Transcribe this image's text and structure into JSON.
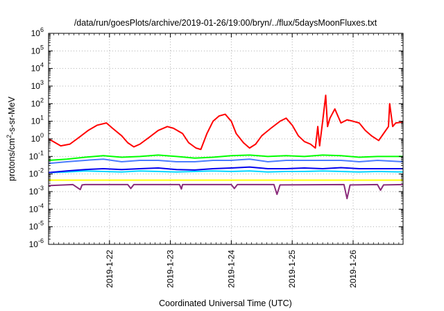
{
  "chart_data": {
    "type": "line",
    "title": "/data/run/goesPlots/archive/2019-01-26/19:00/bryn/../flux/5daysMoonFluxes.txt",
    "xlabel": "Coordinated Universal Time (UTC)",
    "ylabel_parts": {
      "pre": "protons/cm",
      "sup": "2",
      "post": "-s-sr-MeV"
    },
    "yscale": "log",
    "ylim": [
      1e-06,
      1000000.0
    ],
    "xlim": [
      21.0,
      26.82
    ],
    "grid": true,
    "yticks": [
      {
        "value": -6,
        "base": "10",
        "exp": "-6"
      },
      {
        "value": -5,
        "base": "10",
        "exp": "-5"
      },
      {
        "value": -4,
        "base": "10",
        "exp": "-4"
      },
      {
        "value": -3,
        "base": "10",
        "exp": "-3"
      },
      {
        "value": -2,
        "base": "10",
        "exp": "-2"
      },
      {
        "value": -1,
        "base": "10",
        "exp": "-1"
      },
      {
        "value": 0,
        "base": "10",
        "exp": "0"
      },
      {
        "value": 1,
        "base": "10",
        "exp": "1"
      },
      {
        "value": 2,
        "base": "10",
        "exp": "2"
      },
      {
        "value": 3,
        "base": "10",
        "exp": "3"
      },
      {
        "value": 4,
        "base": "10",
        "exp": "4"
      },
      {
        "value": 5,
        "base": "10",
        "exp": "5"
      },
      {
        "value": 6,
        "base": "10",
        "exp": "6"
      }
    ],
    "xticks": [
      {
        "value": 22,
        "label": "2019-1-22"
      },
      {
        "value": 23,
        "label": "2019-1-23"
      },
      {
        "value": 24,
        "label": "2019-1-24"
      },
      {
        "value": 25,
        "label": "2019-1-25"
      },
      {
        "value": 26,
        "label": "2019-1-26"
      }
    ],
    "series": [
      {
        "color": "#ff0000",
        "x": [
          21.0,
          21.2,
          21.35,
          21.5,
          21.65,
          21.8,
          21.95,
          22.05,
          22.2,
          22.3,
          22.4,
          22.5,
          22.65,
          22.8,
          22.95,
          23.05,
          23.2,
          23.3,
          23.42,
          23.5,
          23.6,
          23.7,
          23.8,
          23.9,
          24.0,
          24.08,
          24.2,
          24.3,
          24.4,
          24.5,
          24.65,
          24.8,
          24.9,
          25.0,
          25.1,
          25.2,
          25.3,
          25.38,
          25.42,
          25.45,
          25.5,
          25.55,
          25.58,
          25.62,
          25.7,
          25.8,
          25.9,
          26.0,
          26.1,
          26.2,
          26.3,
          26.42,
          26.5,
          26.58,
          26.6,
          26.65,
          26.7,
          26.82
        ],
        "values": [
          1.0,
          0.4,
          0.5,
          1.2,
          3.0,
          6.0,
          8.0,
          4.0,
          1.5,
          0.6,
          0.35,
          0.5,
          1.2,
          3.0,
          5.0,
          4.0,
          2.0,
          0.6,
          0.3,
          0.25,
          2.0,
          10.0,
          20.0,
          25.0,
          10.0,
          2.0,
          0.6,
          0.3,
          0.5,
          1.5,
          4.0,
          10.0,
          15.0,
          6.0,
          1.5,
          0.7,
          0.5,
          0.3,
          5.0,
          0.4,
          10.0,
          300.0,
          5.0,
          15.0,
          50.0,
          8.0,
          12.0,
          10.0,
          8.0,
          3.0,
          1.5,
          0.8,
          2.0,
          5.0,
          100.0,
          5.0,
          8.0,
          9.0
        ]
      },
      {
        "color": "#00ff00",
        "x": [
          21.0,
          21.3,
          21.6,
          21.9,
          22.2,
          22.5,
          22.8,
          23.1,
          23.4,
          23.7,
          24.0,
          24.3,
          24.6,
          24.9,
          25.2,
          25.5,
          25.8,
          26.1,
          26.4,
          26.82
        ],
        "values": [
          0.06,
          0.07,
          0.09,
          0.11,
          0.09,
          0.1,
          0.12,
          0.1,
          0.08,
          0.09,
          0.11,
          0.12,
          0.1,
          0.11,
          0.1,
          0.12,
          0.11,
          0.09,
          0.1,
          0.1
        ]
      },
      {
        "color": "#4a7bff",
        "x": [
          21.0,
          21.3,
          21.6,
          21.9,
          22.2,
          22.5,
          22.8,
          23.1,
          23.4,
          23.7,
          24.0,
          24.3,
          24.6,
          24.9,
          25.2,
          25.5,
          25.8,
          26.1,
          26.4,
          26.82
        ],
        "values": [
          0.04,
          0.05,
          0.06,
          0.07,
          0.05,
          0.06,
          0.06,
          0.05,
          0.05,
          0.06,
          0.06,
          0.07,
          0.05,
          0.06,
          0.06,
          0.06,
          0.06,
          0.05,
          0.06,
          0.05
        ]
      },
      {
        "color": "#00d6ff",
        "x": [
          21.0,
          21.3,
          21.6,
          21.9,
          22.2,
          22.5,
          22.8,
          23.1,
          23.4,
          23.7,
          24.0,
          24.3,
          24.6,
          24.9,
          25.2,
          25.5,
          25.8,
          26.1,
          26.4,
          26.82
        ],
        "values": [
          0.012,
          0.013,
          0.015,
          0.014,
          0.013,
          0.015,
          0.014,
          0.013,
          0.014,
          0.015,
          0.014,
          0.015,
          0.013,
          0.014,
          0.014,
          0.015,
          0.014,
          0.013,
          0.014,
          0.013
        ]
      },
      {
        "color": "#0000ee",
        "x": [
          21.0,
          21.3,
          21.6,
          21.9,
          22.2,
          22.5,
          22.8,
          23.1,
          23.4,
          23.7,
          24.0,
          24.3,
          24.6,
          24.9,
          25.2,
          25.5,
          25.8,
          26.1,
          26.4,
          26.82
        ],
        "values": [
          0.012,
          0.015,
          0.018,
          0.02,
          0.018,
          0.02,
          0.022,
          0.018,
          0.017,
          0.02,
          0.022,
          0.025,
          0.02,
          0.02,
          0.022,
          0.02,
          0.023,
          0.02,
          0.02,
          0.02
        ]
      },
      {
        "color": "#ffff00",
        "x": [
          21.0,
          21.5,
          22.0,
          22.5,
          23.0,
          23.5,
          24.0,
          24.5,
          25.0,
          25.5,
          26.0,
          26.5,
          26.82
        ],
        "values": [
          0.0045,
          0.0045,
          0.0045,
          0.0045,
          0.0045,
          0.0045,
          0.0045,
          0.0045,
          0.0045,
          0.0045,
          0.0045,
          0.0045,
          0.0045
        ]
      },
      {
        "color": "#8a2a7a",
        "x": [
          21.0,
          21.4,
          21.52,
          21.55,
          21.6,
          22.3,
          22.35,
          22.4,
          23.15,
          23.18,
          23.2,
          24.0,
          24.05,
          24.1,
          24.7,
          24.75,
          24.8,
          25.85,
          25.9,
          25.95,
          26.4,
          26.45,
          26.5,
          26.82
        ],
        "values": [
          0.0022,
          0.0025,
          0.0013,
          0.0024,
          0.0025,
          0.0025,
          0.0015,
          0.0025,
          0.0025,
          0.0014,
          0.0025,
          0.0025,
          0.0015,
          0.0025,
          0.0025,
          0.0007,
          0.0024,
          0.0025,
          0.0004,
          0.0024,
          0.0025,
          0.0012,
          0.0024,
          0.0025
        ]
      }
    ]
  }
}
